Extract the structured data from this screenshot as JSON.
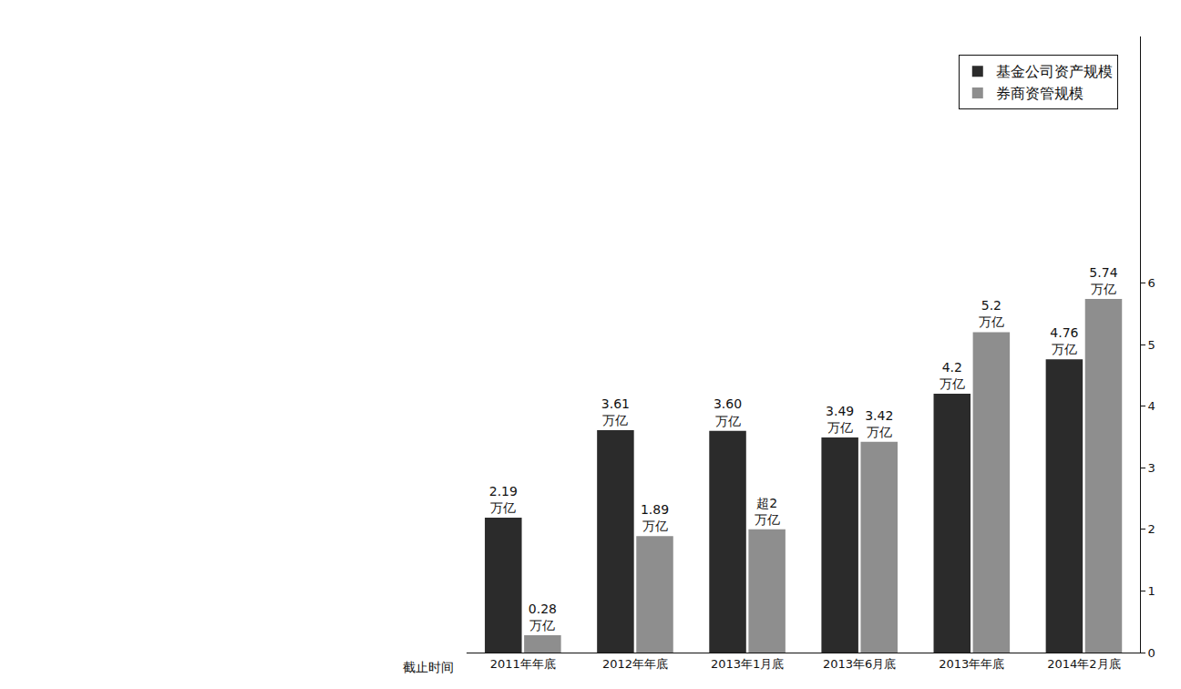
{
  "chart_data": {
    "type": "bar",
    "x_label": "截止时间",
    "categories": [
      "2011年年底",
      "2012年年底",
      "2013年1月底",
      "2013年6月底",
      "2013年年底",
      "2014年2月底"
    ],
    "series": [
      {
        "name": "基金公司资产规模",
        "color": "#2b2b2b",
        "values": [
          2.19,
          3.61,
          3.6,
          3.49,
          4.2,
          4.76
        ],
        "value_labels": [
          "2.19\n万亿",
          "3.61\n万亿",
          "3.60\n万亿",
          "3.49\n万亿",
          "4.2\n万亿",
          "4.76\n万亿"
        ]
      },
      {
        "name": "券商资管规模",
        "color": "#8e8e8e",
        "values": [
          0.28,
          1.89,
          2,
          3.42,
          5.2,
          5.74
        ],
        "value_labels": [
          "0.28\n万亿",
          "1.89\n万亿",
          "超2\n万亿",
          "3.42\n万亿",
          "5.2\n万亿",
          "5.74\n万亿"
        ]
      }
    ],
    "ylim": [
      0,
      10
    ],
    "yticks": [
      0,
      1,
      2,
      3,
      4,
      5,
      6
    ],
    "grid": false,
    "legend": "top right",
    "data_labels": true
  }
}
